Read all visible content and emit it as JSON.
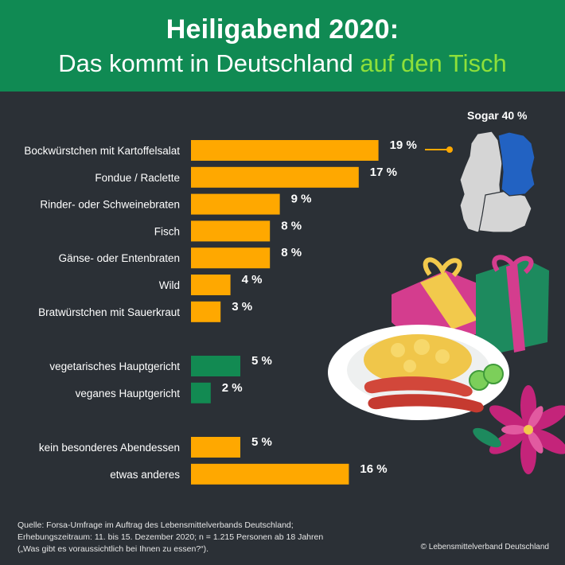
{
  "header": {
    "title_line1": "Heiligabend 2020:",
    "title_line2_prefix": "Das kommt in Deutschland ",
    "title_line2_accent": "auf den Tisch"
  },
  "colors": {
    "header_bg": "#108a53",
    "background": "#2b3036",
    "bar_orange": "#ffa800",
    "bar_green": "#128a52",
    "accent_green": "#8ee03a",
    "map_grey": "#d5d5d5",
    "map_blue": "#2262c2"
  },
  "map": {
    "label": "Sogar 40 %",
    "highlight_region": "Ostdeutschland"
  },
  "chart_data": {
    "type": "bar",
    "orientation": "horizontal",
    "unit": "%",
    "groups": [
      {
        "color": "#ffa800",
        "categories": [
          "Bockwürstchen mit Kartoffelsalat",
          "Fondue / Raclette",
          "Rinder- oder Schweinebraten",
          "Fisch",
          "Gänse- oder Entenbraten",
          "Wild",
          "Bratwürstchen mit Sauerkraut"
        ],
        "values": [
          19,
          17,
          9,
          8,
          8,
          4,
          3
        ],
        "labels": [
          "19 %",
          "17 %",
          "9 %",
          "8 %",
          "8 %",
          "4 %",
          "3 %"
        ]
      },
      {
        "color": "#128a52",
        "categories": [
          "vegetarisches Hauptgericht",
          "veganes Hauptgericht"
        ],
        "values": [
          5,
          2
        ],
        "labels": [
          "5 %",
          "2 %"
        ]
      },
      {
        "color": "#ffa800",
        "categories": [
          "kein besonderes Abendessen",
          "etwas anderes"
        ],
        "values": [
          5,
          16
        ],
        "labels": [
          "5 %",
          "16 %"
        ]
      }
    ]
  },
  "footer": {
    "source_line1": "Quelle: Forsa-Umfrage im Auftrag des Lebensmittelverbands Deutschland;",
    "source_line2": "Erhebungszeitraum: 11. bis 15. Dezember 2020; n = 1.215 Personen ab 18 Jahren",
    "source_line3": "(„Was gibt es voraussichtlich bei Ihnen zu essen?“).",
    "copyright": "© Lebensmittelverband Deutschland"
  }
}
